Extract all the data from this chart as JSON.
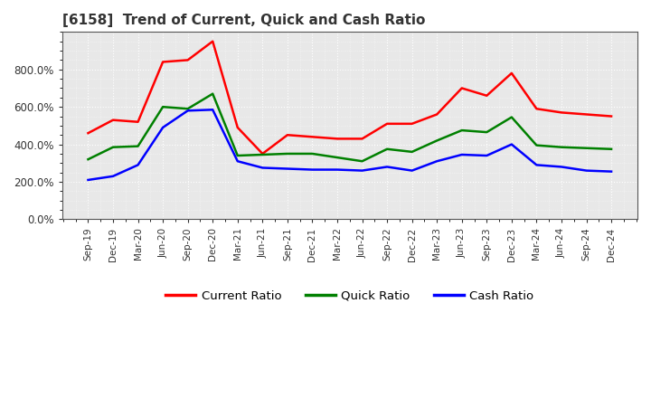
{
  "title": "[6158]  Trend of Current, Quick and Cash Ratio",
  "labels": [
    "Sep-19",
    "Dec-19",
    "Mar-20",
    "Jun-20",
    "Sep-20",
    "Dec-20",
    "Mar-21",
    "Jun-21",
    "Sep-21",
    "Dec-21",
    "Mar-22",
    "Jun-22",
    "Sep-22",
    "Dec-22",
    "Mar-23",
    "Jun-23",
    "Sep-23",
    "Dec-23",
    "Mar-24",
    "Jun-24",
    "Sep-24",
    "Dec-24"
  ],
  "current_ratio": [
    460,
    530,
    520,
    840,
    850,
    950,
    490,
    350,
    450,
    440,
    430,
    430,
    510,
    510,
    560,
    700,
    660,
    780,
    590,
    570,
    560,
    550
  ],
  "quick_ratio": [
    320,
    385,
    390,
    600,
    590,
    670,
    340,
    345,
    350,
    350,
    330,
    310,
    375,
    360,
    420,
    475,
    465,
    545,
    395,
    385,
    380,
    375
  ],
  "cash_ratio": [
    210,
    230,
    290,
    490,
    580,
    585,
    310,
    275,
    270,
    265,
    265,
    260,
    280,
    260,
    310,
    345,
    340,
    400,
    290,
    280,
    260,
    255
  ],
  "ylim": [
    0,
    1000
  ],
  "yticks": [
    0,
    200,
    400,
    600,
    800
  ],
  "yticklabels": [
    "0.0%",
    "200.0%",
    "400.0%",
    "600.0%",
    "800.0%"
  ],
  "line_colors": {
    "current": "#ff0000",
    "quick": "#008000",
    "cash": "#0000ff"
  },
  "line_width": 1.8,
  "background_color": "#ffffff",
  "plot_background": "#e8e8e8",
  "grid_color": "#ffffff",
  "title_color": "#333333",
  "legend_labels": [
    "Current Ratio",
    "Quick Ratio",
    "Cash Ratio"
  ]
}
